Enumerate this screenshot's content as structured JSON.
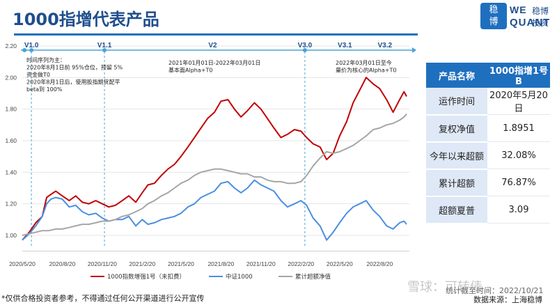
{
  "header": {
    "title": "1000指增代表产品",
    "logo_badge_top": "稳",
    "logo_badge_bottom": "博",
    "logo_en_top": "WE",
    "logo_en_bottom": "QUANT",
    "logo_cn": "稳博投资"
  },
  "colors": {
    "accent": "#1f6fbf",
    "title": "#1f4e8c",
    "series_red": "#c00000",
    "series_blue": "#4a8fe0",
    "series_gray": "#a6a6a6"
  },
  "versions": [
    {
      "label": "V1.0",
      "date": "2020-06-10",
      "marker": false
    },
    {
      "label": "V1.1",
      "date": "2020-11-25",
      "marker": false
    },
    {
      "label": "V2",
      "date": "2021-08-01",
      "marker": false
    },
    {
      "label": "V3.0",
      "date": "2022-03-01",
      "marker": false
    },
    {
      "label": "V3.1",
      "date": "2022-06-01",
      "marker": false
    },
    {
      "label": "V3.2",
      "date": "2022-09-01",
      "marker": false
    }
  ],
  "version_bar": {
    "dots": [
      "2020-05-25",
      "2020-06-10",
      "2020-11-25",
      "2022-03-01"
    ]
  },
  "annotations": {
    "a1": [
      "时间序列为主：",
      "2020年8月1日前 95%仓位，预留 5%",
      "资金做T0",
      "2020年8月1日后，使用股指期货配平",
      "beta到 100%"
    ],
    "a2": [
      "2021年01月01日-2022年03月01日",
      "基本面Alpha+T0"
    ],
    "a3": [
      "2022年03月01日至今",
      "量价为核心的Alpha+T0"
    ]
  },
  "table": {
    "header_key": "产品名称",
    "header_value": "1000指增1号B",
    "rows": [
      {
        "key": "运作时间",
        "value": "2020年5月20日"
      },
      {
        "key": "复权净值",
        "value": "1.8951"
      },
      {
        "key": "今年以来超额",
        "value": "32.08%"
      },
      {
        "key": "累计超额",
        "value": "76.87%"
      },
      {
        "key": "超额夏普",
        "value": "3.09"
      }
    ]
  },
  "footer": {
    "note": "*仅供合格投资者参考，不得通过任何公开渠道进行公开宣传",
    "source": "数据来源：上海稳博",
    "watermark": "雪球：可转债",
    "watermark_small": "统计截至时间：2022/10/21"
  },
  "chart_data": {
    "type": "line",
    "ylim": [
      1.0,
      2.2
    ],
    "y_ticks": [
      "1.00",
      "1.20",
      "1.40",
      "1.60",
      "1.80",
      "2.00",
      "2.20"
    ],
    "x_ticks": [
      "2020/5/20",
      "2020/8/20",
      "2020/11/20",
      "2021/2/20",
      "2021/5/20",
      "2021/8/20",
      "2021/11/20",
      "2022/2/20",
      "2022/5/20",
      "2022/8/20"
    ],
    "x_range": [
      "2020-05-20",
      "2022-10-21"
    ],
    "legend_position": "bottom",
    "series": [
      {
        "name": "1000指数增强1号（未扣费）",
        "color": "#c00000",
        "points": [
          [
            "2020-05-20",
            0.97
          ],
          [
            "2020-06-05",
            1.02
          ],
          [
            "2020-06-20",
            1.08
          ],
          [
            "2020-07-05",
            1.12
          ],
          [
            "2020-07-15",
            1.24
          ],
          [
            "2020-07-25",
            1.26
          ],
          [
            "2020-08-05",
            1.28
          ],
          [
            "2020-08-20",
            1.25
          ],
          [
            "2020-09-05",
            1.22
          ],
          [
            "2020-09-20",
            1.25
          ],
          [
            "2020-10-05",
            1.21
          ],
          [
            "2020-10-20",
            1.2
          ],
          [
            "2020-11-05",
            1.22
          ],
          [
            "2020-11-20",
            1.2
          ],
          [
            "2020-12-05",
            1.18
          ],
          [
            "2020-12-20",
            1.19
          ],
          [
            "2021-01-05",
            1.22
          ],
          [
            "2021-01-20",
            1.25
          ],
          [
            "2021-02-05",
            1.21
          ],
          [
            "2021-02-20",
            1.27
          ],
          [
            "2021-03-05",
            1.32
          ],
          [
            "2021-03-20",
            1.33
          ],
          [
            "2021-04-05",
            1.38
          ],
          [
            "2021-04-20",
            1.42
          ],
          [
            "2021-05-05",
            1.45
          ],
          [
            "2021-05-20",
            1.5
          ],
          [
            "2021-06-05",
            1.56
          ],
          [
            "2021-06-20",
            1.62
          ],
          [
            "2021-07-05",
            1.68
          ],
          [
            "2021-07-20",
            1.74
          ],
          [
            "2021-08-05",
            1.78
          ],
          [
            "2021-08-20",
            1.85
          ],
          [
            "2021-09-05",
            1.86
          ],
          [
            "2021-09-20",
            1.8
          ],
          [
            "2021-10-05",
            1.75
          ],
          [
            "2021-10-20",
            1.79
          ],
          [
            "2021-11-05",
            1.84
          ],
          [
            "2021-11-20",
            1.8
          ],
          [
            "2021-12-05",
            1.74
          ],
          [
            "2021-12-20",
            1.68
          ],
          [
            "2022-01-05",
            1.62
          ],
          [
            "2022-01-20",
            1.64
          ],
          [
            "2022-02-05",
            1.67
          ],
          [
            "2022-02-20",
            1.66
          ],
          [
            "2022-03-05",
            1.62
          ],
          [
            "2022-03-20",
            1.58
          ],
          [
            "2022-04-05",
            1.56
          ],
          [
            "2022-04-20",
            1.48
          ],
          [
            "2022-05-05",
            1.52
          ],
          [
            "2022-05-20",
            1.63
          ],
          [
            "2022-06-05",
            1.72
          ],
          [
            "2022-06-20",
            1.84
          ],
          [
            "2022-07-05",
            1.92
          ],
          [
            "2022-07-20",
            2.0
          ],
          [
            "2022-08-05",
            1.96
          ],
          [
            "2022-08-20",
            1.93
          ],
          [
            "2022-09-05",
            1.86
          ],
          [
            "2022-09-20",
            1.78
          ],
          [
            "2022-10-05",
            1.86
          ],
          [
            "2022-10-15",
            1.91
          ],
          [
            "2022-10-21",
            1.88
          ]
        ]
      },
      {
        "name": "中证1000",
        "color": "#4a8fe0",
        "points": [
          [
            "2020-05-20",
            0.97
          ],
          [
            "2020-06-05",
            1.01
          ],
          [
            "2020-06-20",
            1.06
          ],
          [
            "2020-07-05",
            1.12
          ],
          [
            "2020-07-15",
            1.2
          ],
          [
            "2020-07-25",
            1.23
          ],
          [
            "2020-08-05",
            1.24
          ],
          [
            "2020-08-20",
            1.23
          ],
          [
            "2020-09-05",
            1.18
          ],
          [
            "2020-09-20",
            1.19
          ],
          [
            "2020-10-05",
            1.15
          ],
          [
            "2020-10-20",
            1.13
          ],
          [
            "2020-11-05",
            1.14
          ],
          [
            "2020-11-20",
            1.11
          ],
          [
            "2020-12-05",
            1.09
          ],
          [
            "2020-12-20",
            1.1
          ],
          [
            "2021-01-05",
            1.1
          ],
          [
            "2021-01-20",
            1.12
          ],
          [
            "2021-02-05",
            1.06
          ],
          [
            "2021-02-20",
            1.1
          ],
          [
            "2021-03-05",
            1.07
          ],
          [
            "2021-03-20",
            1.08
          ],
          [
            "2021-04-05",
            1.1
          ],
          [
            "2021-04-20",
            1.11
          ],
          [
            "2021-05-05",
            1.12
          ],
          [
            "2021-05-20",
            1.14
          ],
          [
            "2021-06-05",
            1.18
          ],
          [
            "2021-06-20",
            1.2
          ],
          [
            "2021-07-05",
            1.24
          ],
          [
            "2021-07-20",
            1.26
          ],
          [
            "2021-08-05",
            1.28
          ],
          [
            "2021-08-20",
            1.33
          ],
          [
            "2021-09-05",
            1.34
          ],
          [
            "2021-09-20",
            1.3
          ],
          [
            "2021-10-05",
            1.27
          ],
          [
            "2021-10-20",
            1.3
          ],
          [
            "2021-11-05",
            1.35
          ],
          [
            "2021-11-20",
            1.32
          ],
          [
            "2021-12-05",
            1.3
          ],
          [
            "2021-12-20",
            1.28
          ],
          [
            "2022-01-05",
            1.22
          ],
          [
            "2022-01-20",
            1.18
          ],
          [
            "2022-02-05",
            1.2
          ],
          [
            "2022-02-20",
            1.22
          ],
          [
            "2022-03-05",
            1.19
          ],
          [
            "2022-03-20",
            1.11
          ],
          [
            "2022-04-05",
            1.06
          ],
          [
            "2022-04-20",
            0.97
          ],
          [
            "2022-05-05",
            1.02
          ],
          [
            "2022-05-20",
            1.08
          ],
          [
            "2022-06-05",
            1.14
          ],
          [
            "2022-06-20",
            1.18
          ],
          [
            "2022-07-05",
            1.2
          ],
          [
            "2022-07-20",
            1.22
          ],
          [
            "2022-08-05",
            1.16
          ],
          [
            "2022-08-20",
            1.12
          ],
          [
            "2022-09-05",
            1.06
          ],
          [
            "2022-09-20",
            1.04
          ],
          [
            "2022-10-05",
            1.08
          ],
          [
            "2022-10-15",
            1.09
          ],
          [
            "2022-10-21",
            1.07
          ]
        ]
      },
      {
        "name": "累计超额净值",
        "color": "#a6a6a6",
        "points": [
          [
            "2020-05-20",
            1.0
          ],
          [
            "2020-06-05",
            1.01
          ],
          [
            "2020-06-20",
            1.02
          ],
          [
            "2020-07-05",
            1.03
          ],
          [
            "2020-07-20",
            1.03
          ],
          [
            "2020-08-05",
            1.04
          ],
          [
            "2020-08-20",
            1.04
          ],
          [
            "2020-09-05",
            1.05
          ],
          [
            "2020-09-20",
            1.06
          ],
          [
            "2020-10-05",
            1.07
          ],
          [
            "2020-10-20",
            1.07
          ],
          [
            "2020-11-05",
            1.08
          ],
          [
            "2020-11-20",
            1.09
          ],
          [
            "2020-12-05",
            1.09
          ],
          [
            "2020-12-20",
            1.1
          ],
          [
            "2021-01-05",
            1.12
          ],
          [
            "2021-01-20",
            1.13
          ],
          [
            "2021-02-05",
            1.15
          ],
          [
            "2021-02-20",
            1.17
          ],
          [
            "2021-03-05",
            1.2
          ],
          [
            "2021-03-20",
            1.22
          ],
          [
            "2021-04-05",
            1.25
          ],
          [
            "2021-04-20",
            1.27
          ],
          [
            "2021-05-05",
            1.3
          ],
          [
            "2021-05-20",
            1.33
          ],
          [
            "2021-06-05",
            1.35
          ],
          [
            "2021-06-20",
            1.38
          ],
          [
            "2021-07-05",
            1.4
          ],
          [
            "2021-07-20",
            1.41
          ],
          [
            "2021-08-05",
            1.42
          ],
          [
            "2021-08-20",
            1.42
          ],
          [
            "2021-09-05",
            1.41
          ],
          [
            "2021-09-20",
            1.4
          ],
          [
            "2021-10-05",
            1.39
          ],
          [
            "2021-10-20",
            1.39
          ],
          [
            "2021-11-05",
            1.37
          ],
          [
            "2021-11-20",
            1.37
          ],
          [
            "2021-12-05",
            1.35
          ],
          [
            "2021-12-20",
            1.34
          ],
          [
            "2022-01-05",
            1.34
          ],
          [
            "2022-01-20",
            1.33
          ],
          [
            "2022-02-05",
            1.33
          ],
          [
            "2022-02-20",
            1.34
          ],
          [
            "2022-03-05",
            1.38
          ],
          [
            "2022-03-20",
            1.44
          ],
          [
            "2022-04-05",
            1.49
          ],
          [
            "2022-04-20",
            1.53
          ],
          [
            "2022-05-05",
            1.52
          ],
          [
            "2022-05-20",
            1.53
          ],
          [
            "2022-06-05",
            1.55
          ],
          [
            "2022-06-20",
            1.57
          ],
          [
            "2022-07-05",
            1.6
          ],
          [
            "2022-07-20",
            1.63
          ],
          [
            "2022-08-05",
            1.67
          ],
          [
            "2022-08-20",
            1.68
          ],
          [
            "2022-09-05",
            1.7
          ],
          [
            "2022-09-20",
            1.71
          ],
          [
            "2022-10-05",
            1.73
          ],
          [
            "2022-10-15",
            1.75
          ],
          [
            "2022-10-21",
            1.77
          ]
        ]
      }
    ]
  }
}
